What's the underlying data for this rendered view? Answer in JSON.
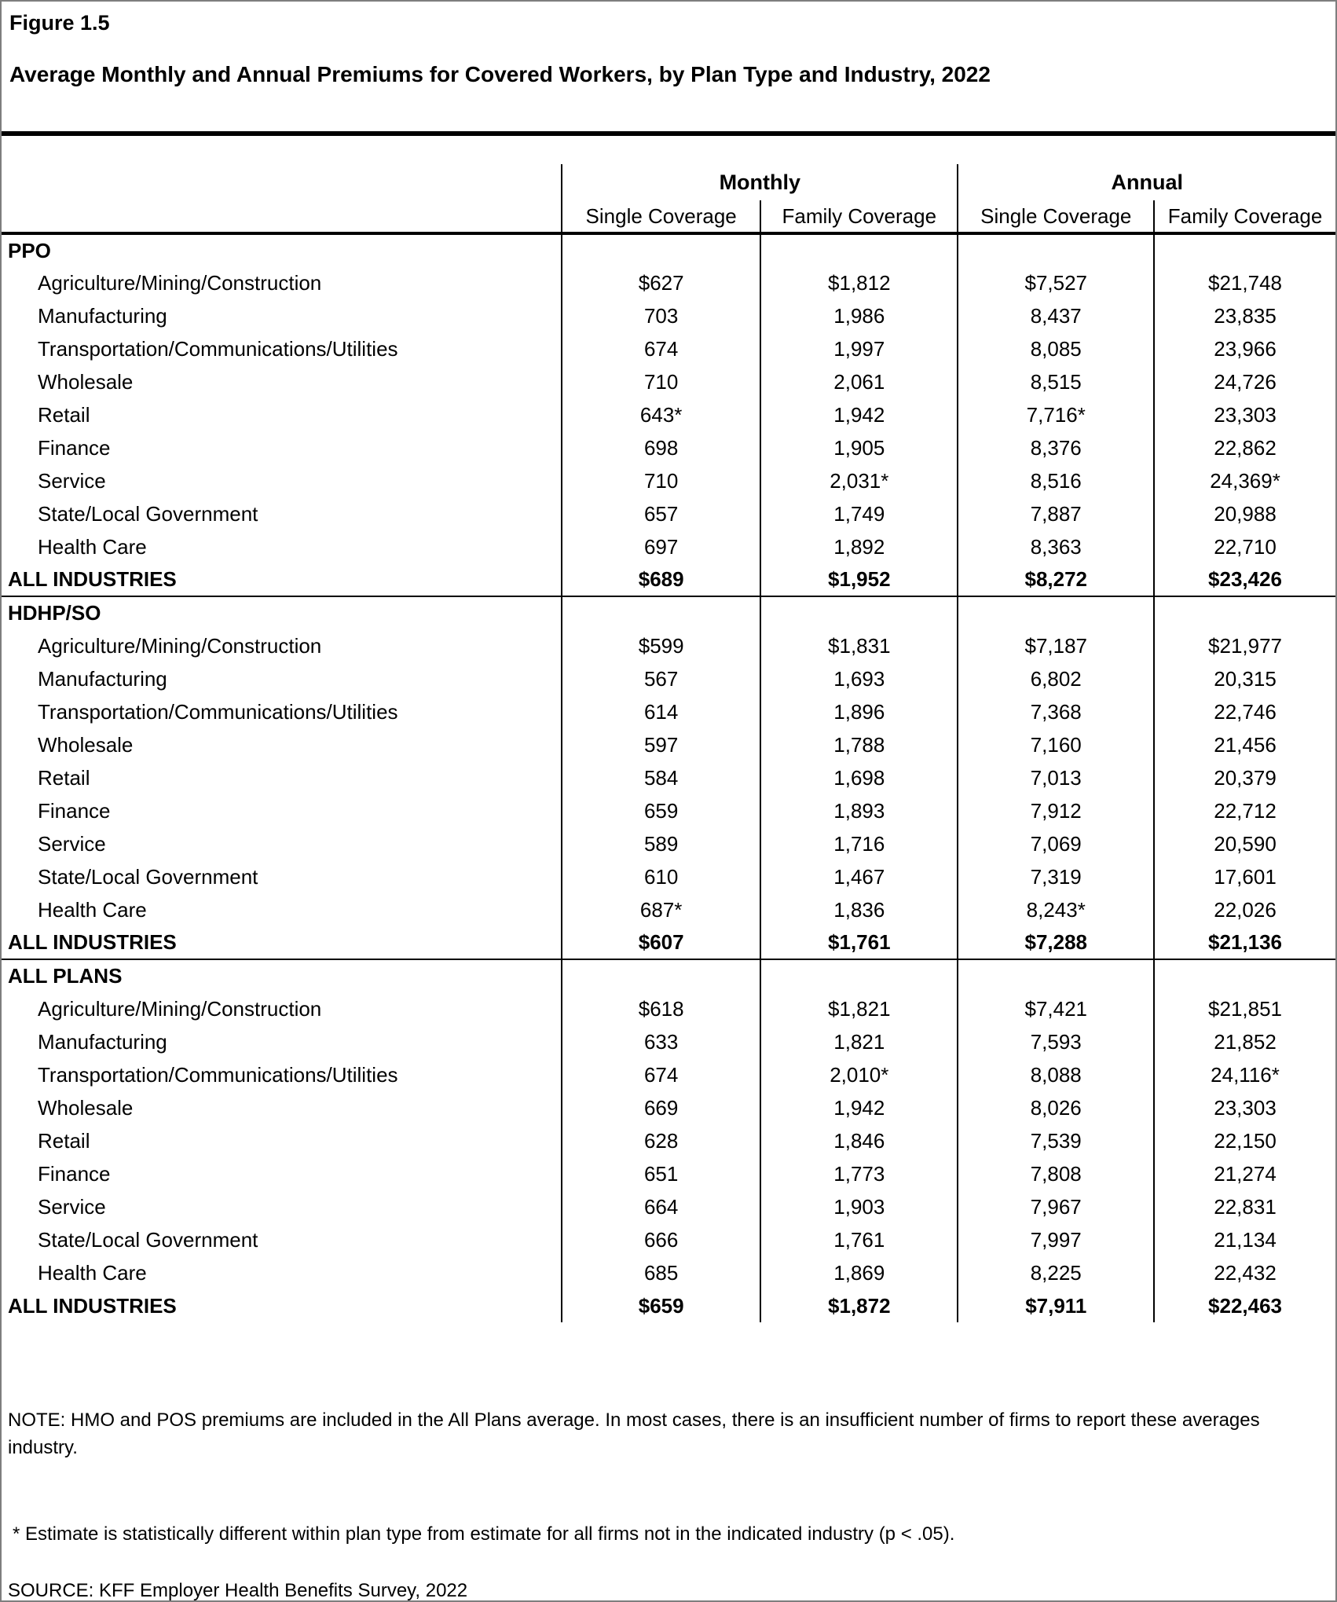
{
  "figure_label": "Figure 1.5",
  "title": "Average Monthly and Annual Premiums for Covered Workers, by Plan Type and Industry, 2022",
  "table": {
    "group_headers": [
      "Monthly",
      "Annual"
    ],
    "sub_headers": [
      "Single Coverage",
      "Family Coverage",
      "Single Coverage",
      "Family Coverage"
    ],
    "sections": [
      {
        "name": "PPO",
        "rows": [
          {
            "label": "Agriculture/Mining/Construction",
            "values": [
              "$627",
              "$1,812",
              "$7,527",
              "$21,748"
            ]
          },
          {
            "label": "Manufacturing",
            "values": [
              "703",
              "1,986",
              "8,437",
              "23,835"
            ]
          },
          {
            "label": "Transportation/Communications/Utilities",
            "values": [
              "674",
              "1,997",
              "8,085",
              "23,966"
            ]
          },
          {
            "label": "Wholesale",
            "values": [
              "710",
              "2,061",
              "8,515",
              "24,726"
            ]
          },
          {
            "label": "Retail",
            "values": [
              "643*",
              "1,942",
              "7,716*",
              "23,303"
            ]
          },
          {
            "label": "Finance",
            "values": [
              "698",
              "1,905",
              "8,376",
              "22,862"
            ]
          },
          {
            "label": "Service",
            "values": [
              "710",
              "2,031*",
              "8,516",
              "24,369*"
            ]
          },
          {
            "label": "State/Local Government",
            "values": [
              "657",
              "1,749",
              "7,887",
              "20,988"
            ]
          },
          {
            "label": "Health Care",
            "values": [
              "697",
              "1,892",
              "8,363",
              "22,710"
            ]
          }
        ],
        "total": {
          "label": "ALL INDUSTRIES",
          "values": [
            "$689",
            "$1,952",
            "$8,272",
            "$23,426"
          ]
        }
      },
      {
        "name": "HDHP/SO",
        "rows": [
          {
            "label": "Agriculture/Mining/Construction",
            "values": [
              "$599",
              "$1,831",
              "$7,187",
              "$21,977"
            ]
          },
          {
            "label": "Manufacturing",
            "values": [
              "567",
              "1,693",
              "6,802",
              "20,315"
            ]
          },
          {
            "label": "Transportation/Communications/Utilities",
            "values": [
              "614",
              "1,896",
              "7,368",
              "22,746"
            ]
          },
          {
            "label": "Wholesale",
            "values": [
              "597",
              "1,788",
              "7,160",
              "21,456"
            ]
          },
          {
            "label": "Retail",
            "values": [
              "584",
              "1,698",
              "7,013",
              "20,379"
            ]
          },
          {
            "label": "Finance",
            "values": [
              "659",
              "1,893",
              "7,912",
              "22,712"
            ]
          },
          {
            "label": "Service",
            "values": [
              "589",
              "1,716",
              "7,069",
              "20,590"
            ]
          },
          {
            "label": "State/Local Government",
            "values": [
              "610",
              "1,467",
              "7,319",
              "17,601"
            ]
          },
          {
            "label": "Health Care",
            "values": [
              "687*",
              "1,836",
              "8,243*",
              "22,026"
            ]
          }
        ],
        "total": {
          "label": "ALL INDUSTRIES",
          "values": [
            "$607",
            "$1,761",
            "$7,288",
            "$21,136"
          ]
        }
      },
      {
        "name": "ALL PLANS",
        "rows": [
          {
            "label": "Agriculture/Mining/Construction",
            "values": [
              "$618",
              "$1,821",
              "$7,421",
              "$21,851"
            ]
          },
          {
            "label": "Manufacturing",
            "values": [
              "633",
              "1,821",
              "7,593",
              "21,852"
            ]
          },
          {
            "label": "Transportation/Communications/Utilities",
            "values": [
              "674",
              "2,010*",
              "8,088",
              "24,116*"
            ]
          },
          {
            "label": "Wholesale",
            "values": [
              "669",
              "1,942",
              "8,026",
              "23,303"
            ]
          },
          {
            "label": "Retail",
            "values": [
              "628",
              "1,846",
              "7,539",
              "22,150"
            ]
          },
          {
            "label": "Finance",
            "values": [
              "651",
              "1,773",
              "7,808",
              "21,274"
            ]
          },
          {
            "label": "Service",
            "values": [
              "664",
              "1,903",
              "7,967",
              "22,831"
            ]
          },
          {
            "label": "State/Local Government",
            "values": [
              "666",
              "1,761",
              "7,997",
              "21,134"
            ]
          },
          {
            "label": "Health Care",
            "values": [
              "685",
              "1,869",
              "8,225",
              "22,432"
            ]
          }
        ],
        "total": {
          "label": "ALL INDUSTRIES",
          "values": [
            "$659",
            "$1,872",
            "$7,911",
            "$22,463"
          ]
        }
      }
    ]
  },
  "notes": {
    "note": "NOTE: HMO and POS premiums are included in the All Plans average. In most cases, there is an insufficient number of firms to report these averages industry.",
    "footnote": "* Estimate is statistically different within plan type from estimate for all firms not in the indicated industry (p < .05).",
    "source": "SOURCE: KFF Employer Health Benefits Survey, 2022"
  }
}
